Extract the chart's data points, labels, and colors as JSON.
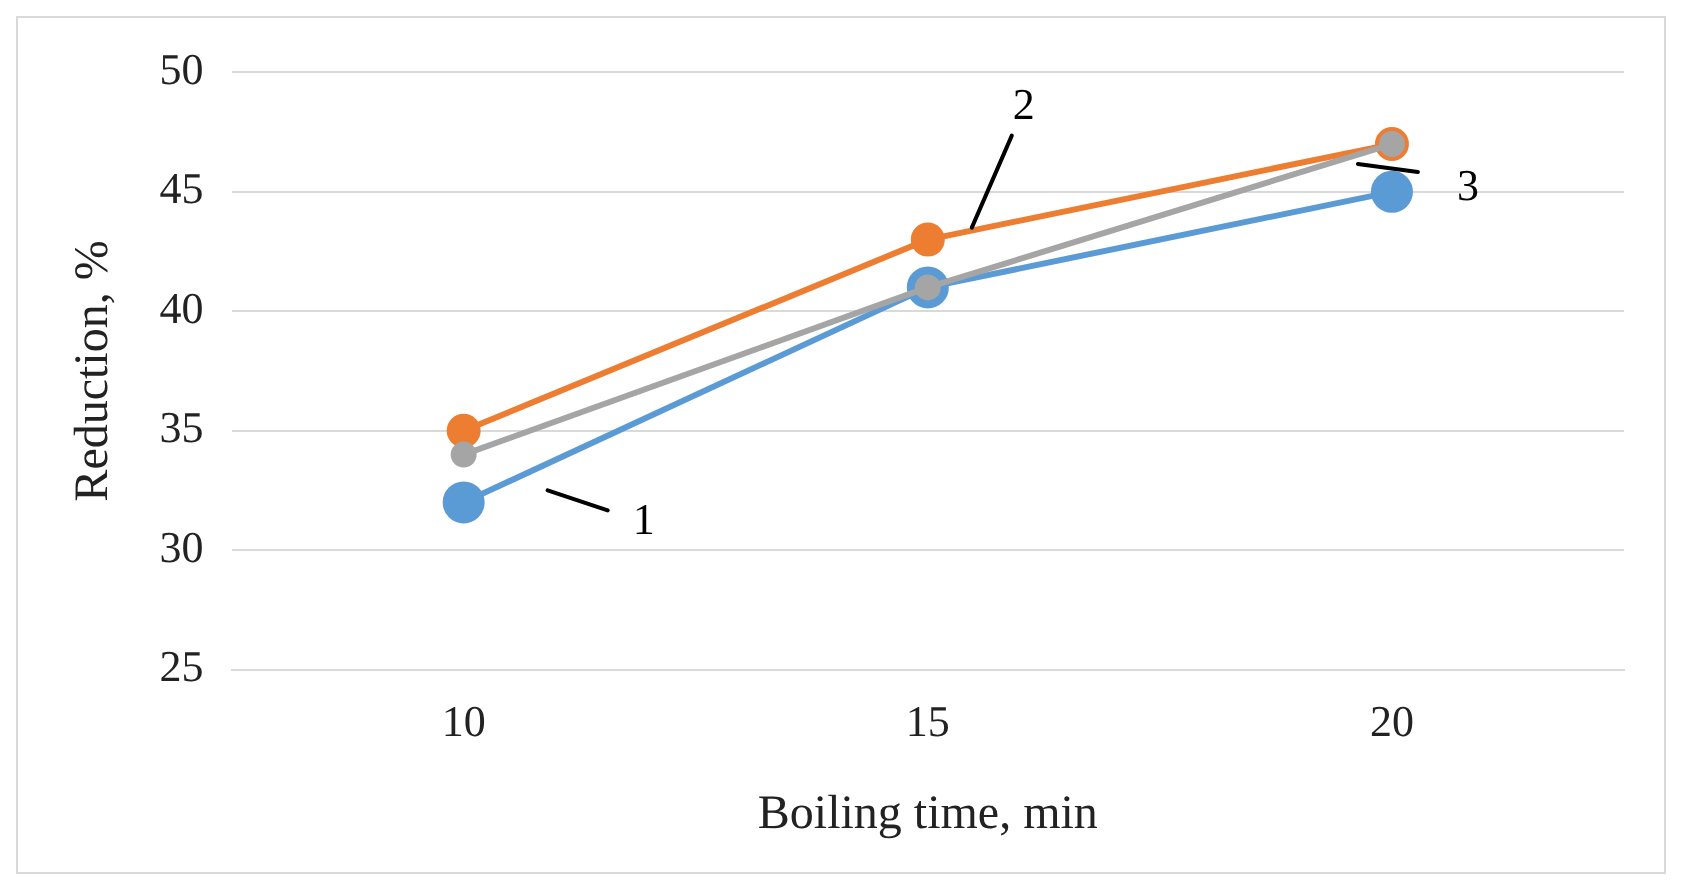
{
  "chart_data": {
    "type": "line",
    "xlabel": "Boiling time, min",
    "ylabel": "Reduction, %",
    "categories": [
      "10",
      "15",
      "20"
    ],
    "series": [
      {
        "name": "1",
        "color": "#5b9bd5",
        "values": [
          32,
          41,
          45
        ]
      },
      {
        "name": "2",
        "color": "#ed7d31",
        "values": [
          35,
          43,
          47
        ]
      },
      {
        "name": "3",
        "color": "#a5a5a5",
        "values": [
          34,
          41,
          47
        ]
      }
    ],
    "ylim": [
      25,
      50
    ],
    "yticks": [
      25,
      30,
      35,
      40,
      45,
      50
    ],
    "grid": "y",
    "legend": false,
    "marker": "circle",
    "line_style": "solid"
  }
}
